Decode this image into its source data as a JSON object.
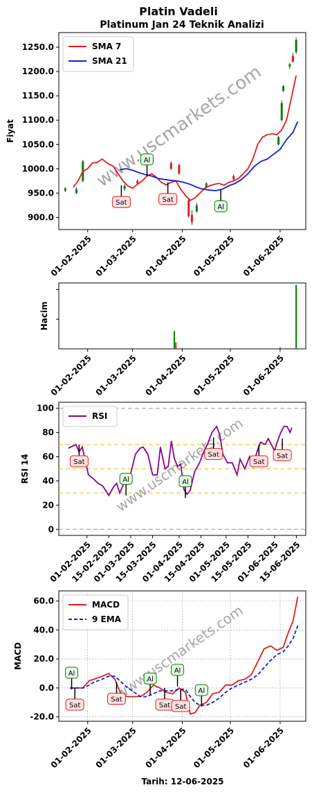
{
  "chart_data": [
    {
      "type": "candlestick",
      "title": "Platin Vadeli",
      "subtitle": "Platinum Jan 24 Teknik Analizi",
      "ylabel": "Fiyat",
      "yticks": [
        "900.0",
        "950.0",
        "1000.0",
        "1050.0",
        "1100.0",
        "1150.0",
        "1200.0",
        "1250.0"
      ],
      "ylim": [
        875,
        1280
      ],
      "xticks": [
        "01-02-2025",
        "01-03-2025",
        "01-04-2025",
        "01-05-2025",
        "01-06-2025"
      ],
      "xlim": [
        "2025-01-14",
        "2025-06-17"
      ],
      "series": [
        {
          "name": "SMA 7",
          "color": "#e41a1c",
          "x": [
            "2025-01-23",
            "2025-01-26",
            "2025-01-29",
            "2025-02-01",
            "2025-02-04",
            "2025-02-07",
            "2025-02-10",
            "2025-02-14",
            "2025-02-17",
            "2025-02-20",
            "2025-02-23",
            "2025-02-26",
            "2025-03-01",
            "2025-03-04",
            "2025-03-07",
            "2025-03-10",
            "2025-03-13",
            "2025-03-16",
            "2025-03-19",
            "2025-03-22",
            "2025-03-25",
            "2025-03-28",
            "2025-03-31",
            "2025-04-03",
            "2025-04-06",
            "2025-04-09",
            "2025-04-12",
            "2025-04-15",
            "2025-04-18",
            "2025-04-21",
            "2025-04-24",
            "2025-04-27",
            "2025-04-30",
            "2025-05-03",
            "2025-05-06",
            "2025-05-09",
            "2025-05-12",
            "2025-05-15",
            "2025-05-18",
            "2025-05-21",
            "2025-05-24",
            "2025-05-27",
            "2025-05-30",
            "2025-06-02",
            "2025-06-05",
            "2025-06-08",
            "2025-06-11"
          ],
          "values": [
            962,
            975,
            995,
            1000,
            1012,
            1013,
            1020,
            1010,
            1005,
            990,
            975,
            965,
            960,
            968,
            975,
            985,
            990,
            982,
            972,
            967,
            972,
            975,
            958,
            945,
            935,
            940,
            950,
            960,
            965,
            968,
            970,
            966,
            972,
            975,
            980,
            990,
            1000,
            1020,
            1050,
            1065,
            1070,
            1072,
            1070,
            1080,
            1100,
            1145,
            1192
          ]
        },
        {
          "name": "SMA 21",
          "color": "#0b1fd6",
          "x": [
            "2025-02-21",
            "2025-02-25",
            "2025-03-01",
            "2025-03-05",
            "2025-03-09",
            "2025-03-13",
            "2025-03-17",
            "2025-03-21",
            "2025-03-25",
            "2025-03-29",
            "2025-04-02",
            "2025-04-06",
            "2025-04-10",
            "2025-04-14",
            "2025-04-18",
            "2025-04-22",
            "2025-04-26",
            "2025-04-30",
            "2025-05-04",
            "2025-05-08",
            "2025-05-12",
            "2025-05-16",
            "2025-05-20",
            "2025-05-24",
            "2025-05-28",
            "2025-06-01",
            "2025-06-05",
            "2025-06-09",
            "2025-06-12"
          ],
          "values": [
            998,
            1000,
            997,
            992,
            988,
            985,
            980,
            978,
            976,
            975,
            972,
            968,
            962,
            958,
            956,
            955,
            958,
            965,
            970,
            978,
            990,
            1005,
            1015,
            1020,
            1030,
            1040,
            1060,
            1075,
            1097
          ]
        }
      ],
      "candles": [
        {
          "x": "2025-01-18",
          "o": 955,
          "c": 960,
          "h": 962,
          "l": 952
        },
        {
          "x": "2025-01-25",
          "o": 950,
          "c": 958,
          "h": 962,
          "l": 948
        },
        {
          "x": "2025-01-29",
          "o": 975,
          "c": 1015,
          "h": 1018,
          "l": 972
        },
        {
          "x": "2025-02-24",
          "o": 958,
          "c": 965,
          "h": 968,
          "l": 955
        },
        {
          "x": "2025-03-04",
          "o": 975,
          "c": 970,
          "h": 978,
          "l": 967
        },
        {
          "x": "2025-03-25",
          "o": 1012,
          "c": 1000,
          "h": 1015,
          "l": 998
        },
        {
          "x": "2025-03-30",
          "o": 1008,
          "c": 990,
          "h": 1010,
          "l": 988
        },
        {
          "x": "2025-04-05",
          "o": 935,
          "c": 902,
          "h": 938,
          "l": 900
        },
        {
          "x": "2025-04-07",
          "o": 905,
          "c": 890,
          "h": 915,
          "l": 885
        },
        {
          "x": "2025-04-10",
          "o": 912,
          "c": 925,
          "h": 930,
          "l": 910
        },
        {
          "x": "2025-04-16",
          "o": 962,
          "c": 970,
          "h": 972,
          "l": 960
        },
        {
          "x": "2025-05-03",
          "o": 985,
          "c": 978,
          "h": 988,
          "l": 975
        },
        {
          "x": "2025-05-31",
          "o": 1050,
          "c": 1065,
          "h": 1068,
          "l": 1048
        },
        {
          "x": "2025-06-02",
          "o": 1100,
          "c": 1135,
          "h": 1140,
          "l": 1098
        },
        {
          "x": "2025-06-03",
          "o": 1160,
          "c": 1170,
          "h": 1172,
          "l": 1158
        },
        {
          "x": "2025-06-07",
          "o": 1210,
          "c": 1215,
          "h": 1218,
          "l": 1205
        },
        {
          "x": "2025-06-09",
          "o": 1232,
          "c": 1220,
          "h": 1238,
          "l": 1218
        },
        {
          "x": "2025-06-11",
          "o": 1240,
          "c": 1265,
          "h": 1270,
          "l": 1236
        }
      ],
      "annotations": [
        {
          "label": "Sat",
          "kind": "sell",
          "x": "2025-02-22",
          "y": 966
        },
        {
          "label": "Al",
          "kind": "buy",
          "x": "2025-03-10",
          "y": 985
        },
        {
          "label": "Sat",
          "kind": "sell",
          "x": "2025-03-23",
          "y": 972
        },
        {
          "label": "Al",
          "kind": "buy",
          "x": "2025-04-25",
          "y": 957
        }
      ],
      "legend": "upper-left"
    },
    {
      "type": "bar",
      "ylabel": "Hacim",
      "xticks": [
        "01-02-2025",
        "01-03-2025",
        "01-04-2025",
        "01-05-2025",
        "01-06-2025"
      ],
      "bars": [
        {
          "x": "2025-03-27",
          "value": 0.27,
          "color": "#008000"
        },
        {
          "x": "2025-03-28",
          "value": 0.1,
          "color": "#e41a1c"
        },
        {
          "x": "2025-06-01",
          "value": 0.02,
          "color": "#008000"
        },
        {
          "x": "2025-06-11",
          "value": 0.97,
          "color": "#008000"
        }
      ]
    },
    {
      "type": "line",
      "ylabel": "RSI 14",
      "yticks": [
        "0",
        "20",
        "40",
        "60",
        "80",
        "100"
      ],
      "ylim": [
        -5,
        105
      ],
      "xticks": [
        "01-02-2025",
        "15-02-2025",
        "01-03-2025",
        "15-03-2025",
        "01-04-2025",
        "15-04-2025",
        "01-05-2025",
        "15-05-2025",
        "01-06-2025",
        "15-06-2025"
      ],
      "series": [
        {
          "name": "RSI",
          "color": "#8b008b",
          "x": [
            "2025-01-20",
            "2025-01-25",
            "2025-01-27",
            "2025-01-29",
            "2025-02-02",
            "2025-02-05",
            "2025-02-08",
            "2025-02-11",
            "2025-02-13",
            "2025-02-15",
            "2025-02-18",
            "2025-02-20",
            "2025-02-22",
            "2025-02-24",
            "2025-02-26",
            "2025-03-01",
            "2025-03-04",
            "2025-03-07",
            "2025-03-09",
            "2025-03-12",
            "2025-03-15",
            "2025-03-18",
            "2025-03-20",
            "2025-03-23",
            "2025-03-25",
            "2025-03-27",
            "2025-03-29",
            "2025-03-31",
            "2025-04-02",
            "2025-04-04",
            "2025-04-06",
            "2025-04-08",
            "2025-04-11",
            "2025-04-14",
            "2025-04-17",
            "2025-04-19",
            "2025-04-22",
            "2025-04-25",
            "2025-04-27",
            "2025-04-29",
            "2025-05-02",
            "2025-05-05",
            "2025-05-08",
            "2025-05-10",
            "2025-05-13",
            "2025-05-16",
            "2025-05-18",
            "2025-05-21",
            "2025-05-23",
            "2025-05-26",
            "2025-05-28",
            "2025-05-30",
            "2025-06-01",
            "2025-06-03",
            "2025-06-05",
            "2025-06-07",
            "2025-06-09",
            "2025-06-11",
            "2025-06-12"
          ],
          "values": [
            67,
            70,
            64,
            68,
            45,
            42,
            38,
            36,
            32,
            28,
            35,
            38,
            30,
            36,
            40,
            46,
            62,
            67,
            68,
            62,
            45,
            45,
            68,
            50,
            52,
            73,
            58,
            52,
            54,
            33,
            29,
            32,
            48,
            55,
            65,
            70,
            80,
            85,
            78,
            62,
            55,
            55,
            45,
            58,
            50,
            60,
            52,
            65,
            72,
            70,
            75,
            70,
            65,
            73,
            80,
            85,
            85,
            80,
            84
          ]
        }
      ],
      "hlines": [
        {
          "y": 0,
          "style": "grey-dashed"
        },
        {
          "y": 100,
          "style": "grey-dashed"
        },
        {
          "y": 30,
          "style": "orange-dashed"
        },
        {
          "y": 50,
          "style": "orange-dashed"
        },
        {
          "y": 70,
          "style": "orange-dashed"
        }
      ],
      "annotations": [
        {
          "label": "Sat",
          "kind": "sell",
          "x": "2025-01-27",
          "y": 70
        },
        {
          "label": "Al",
          "kind": "buy",
          "x": "2025-02-26",
          "y": 28
        },
        {
          "label": "Al",
          "kind": "buy",
          "x": "2025-04-05",
          "y": 26
        },
        {
          "label": "Sat",
          "kind": "sell",
          "x": "2025-04-23",
          "y": 76
        },
        {
          "label": "Sat",
          "kind": "sell",
          "x": "2025-05-22",
          "y": 70
        },
        {
          "label": "Sat",
          "kind": "sell",
          "x": "2025-06-06",
          "y": 75
        }
      ],
      "legend": "upper-left"
    },
    {
      "type": "line",
      "ylabel": "MACD",
      "xlabel": "Tarih: 12-06-2025",
      "yticks": [
        "-20.0",
        "0.0",
        "20.0",
        "40.0",
        "60.0"
      ],
      "ylim": [
        -23,
        67
      ],
      "xticks": [
        "01-02-2025",
        "01-03-2025",
        "01-04-2025",
        "01-05-2025",
        "01-06-2025"
      ],
      "grid": true,
      "series": [
        {
          "name": "MACD",
          "color": "#e41a1c",
          "x": [
            "2025-01-21",
            "2025-01-29",
            "2025-02-02",
            "2025-02-05",
            "2025-02-10",
            "2025-02-14",
            "2025-02-18",
            "2025-02-22",
            "2025-02-26",
            "2025-03-02",
            "2025-03-06",
            "2025-03-10",
            "2025-03-14",
            "2025-03-18",
            "2025-03-22",
            "2025-03-26",
            "2025-03-30",
            "2025-04-03",
            "2025-04-06",
            "2025-04-09",
            "2025-04-12",
            "2025-04-16",
            "2025-04-20",
            "2025-04-24",
            "2025-04-28",
            "2025-05-02",
            "2025-05-06",
            "2025-05-10",
            "2025-05-14",
            "2025-05-18",
            "2025-05-22",
            "2025-05-26",
            "2025-05-30",
            "2025-06-03",
            "2025-06-06",
            "2025-06-09",
            "2025-06-12"
          ],
          "values": [
            0,
            0,
            5,
            6,
            8,
            10,
            6,
            -5,
            -6,
            -6,
            -6,
            -3,
            2,
            0,
            -3,
            -4,
            0,
            -3,
            -18,
            -17,
            -12,
            -10,
            -4,
            -3,
            2,
            2,
            5,
            6,
            9,
            18,
            27,
            29,
            26,
            28,
            38,
            46,
            63
          ]
        },
        {
          "name": "9 EMA",
          "color": "#0b1fd6",
          "dashed": true,
          "x": [
            "2025-01-21",
            "2025-01-29",
            "2025-02-02",
            "2025-02-05",
            "2025-02-10",
            "2025-02-14",
            "2025-02-18",
            "2025-02-22",
            "2025-02-26",
            "2025-03-02",
            "2025-03-06",
            "2025-03-10",
            "2025-03-14",
            "2025-03-18",
            "2025-03-22",
            "2025-03-26",
            "2025-03-30",
            "2025-04-03",
            "2025-04-06",
            "2025-04-09",
            "2025-04-12",
            "2025-04-16",
            "2025-04-20",
            "2025-04-24",
            "2025-04-28",
            "2025-05-02",
            "2025-05-06",
            "2025-05-10",
            "2025-05-14",
            "2025-05-18",
            "2025-05-22",
            "2025-05-26",
            "2025-05-30",
            "2025-06-03",
            "2025-06-06",
            "2025-06-09",
            "2025-06-12"
          ],
          "values": [
            0,
            0,
            2,
            4,
            6,
            8,
            8,
            4,
            0,
            -3,
            -6,
            -6,
            -4,
            -2,
            -2,
            -2,
            -1,
            -1,
            -6,
            -10,
            -12,
            -12,
            -10,
            -7,
            -3,
            0,
            2,
            4,
            6,
            9,
            14,
            19,
            23,
            25,
            29,
            34,
            43
          ]
        }
      ],
      "annotations": [
        {
          "label": "Al",
          "kind": "buy",
          "x": "2025-01-22",
          "y": -1
        },
        {
          "label": "Sat",
          "kind": "sell",
          "x": "2025-01-24",
          "y": 0
        },
        {
          "label": "Sat",
          "kind": "sell",
          "x": "2025-02-19",
          "y": 4
        },
        {
          "label": "Al",
          "kind": "buy",
          "x": "2025-03-12",
          "y": -5
        },
        {
          "label": "Sat",
          "kind": "sell",
          "x": "2025-03-21",
          "y": 0
        },
        {
          "label": "Al",
          "kind": "buy",
          "x": "2025-03-29",
          "y": 1
        },
        {
          "label": "Sat",
          "kind": "sell",
          "x": "2025-03-31",
          "y": -1
        },
        {
          "label": "Al",
          "kind": "buy",
          "x": "2025-04-13",
          "y": -13
        }
      ],
      "legend": "upper-left"
    }
  ],
  "watermark": "www.uscmarkets.com"
}
